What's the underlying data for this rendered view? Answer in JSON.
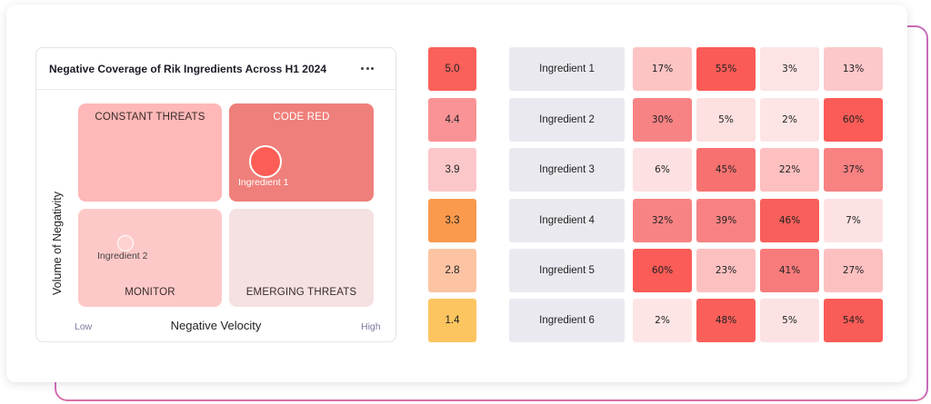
{
  "matrix": {
    "title": "Negative Coverage of Rik Ingredients Across H1 2024",
    "y_axis_label": "Volume of Negativity",
    "x_axis_label": "Negative Velocity",
    "x_low_label": "Low",
    "x_high_label": "High",
    "quadrants": {
      "top_left": "CONSTANT THREATS",
      "top_right": "CODE RED",
      "bottom_left": "MONITOR",
      "bottom_right": "EMERGING THREATS"
    },
    "points": [
      {
        "label": "Ingredient 1",
        "color": "#fc5e57"
      },
      {
        "label": "Ingredient 2",
        "color": "#fdd2d1"
      }
    ],
    "menu_icon": "more-horizontal-icon"
  },
  "heatmap": {
    "rows": [
      {
        "score": "5.0",
        "score_color": "#f9615a",
        "ingredient": "Ingredient 1",
        "cells": [
          "17%",
          "55%",
          "3%",
          "13%"
        ],
        "cell_colors": [
          "#fdc4c4",
          "#fa5b57",
          "#fde3e3",
          "#fdc8c9"
        ]
      },
      {
        "score": "4.4",
        "score_color": "#f99395",
        "ingredient": "Ingredient 2",
        "cells": [
          "30%",
          "5%",
          "2%",
          "60%"
        ],
        "cell_colors": [
          "#f88384",
          "#fde0e0",
          "#fde5e5",
          "#fb5c57"
        ]
      },
      {
        "score": "3.9",
        "score_color": "#fcc7c9",
        "ingredient": "Ingredient 3",
        "cells": [
          "6%",
          "45%",
          "22%",
          "37%"
        ],
        "cell_colors": [
          "#fde0e1",
          "#f77170",
          "#fdbfbf",
          "#f88182"
        ]
      },
      {
        "score": "3.3",
        "score_color": "#f99a4d",
        "ingredient": "Ingredient 4",
        "cells": [
          "32%",
          "39%",
          "46%",
          "7%"
        ],
        "cell_colors": [
          "#f88384",
          "#f88283",
          "#f85f5b",
          "#fde2e3"
        ]
      },
      {
        "score": "2.8",
        "score_color": "#fcc4a3",
        "ingredient": "Ingredient 5",
        "cells": [
          "60%",
          "23%",
          "41%",
          "27%"
        ],
        "cell_colors": [
          "#fb5c57",
          "#fdc0c1",
          "#f87b7b",
          "#fdc0c1"
        ]
      },
      {
        "score": "1.4",
        "score_color": "#fcc560",
        "ingredient": "Ingredient 6",
        "cells": [
          "2%",
          "48%",
          "5%",
          "54%"
        ],
        "cell_colors": [
          "#fde5e5",
          "#fa5f5a",
          "#fde2e3",
          "#fa5c57"
        ]
      }
    ]
  }
}
